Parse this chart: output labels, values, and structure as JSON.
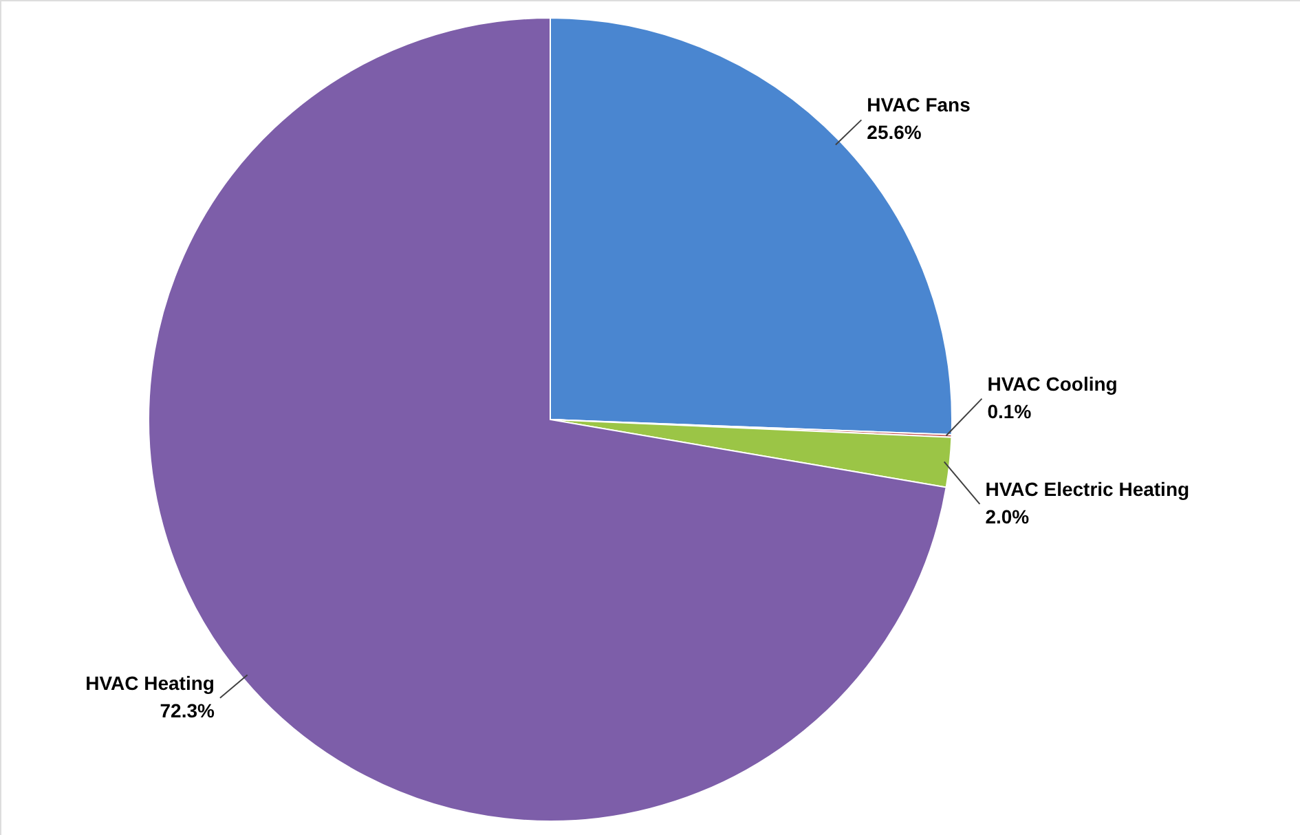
{
  "chart_data": {
    "type": "pie",
    "categories": [
      "HVAC Fans",
      "HVAC Cooling",
      "HVAC Electric Heating",
      "HVAC Heating"
    ],
    "values": [
      25.6,
      0.1,
      2.0,
      72.3
    ],
    "value_labels": [
      "25.6%",
      "0.1%",
      "2.0%",
      "72.3%"
    ],
    "colors": [
      "#4a86d0",
      "#c0504d",
      "#9bc546",
      "#7d5ea9"
    ]
  }
}
